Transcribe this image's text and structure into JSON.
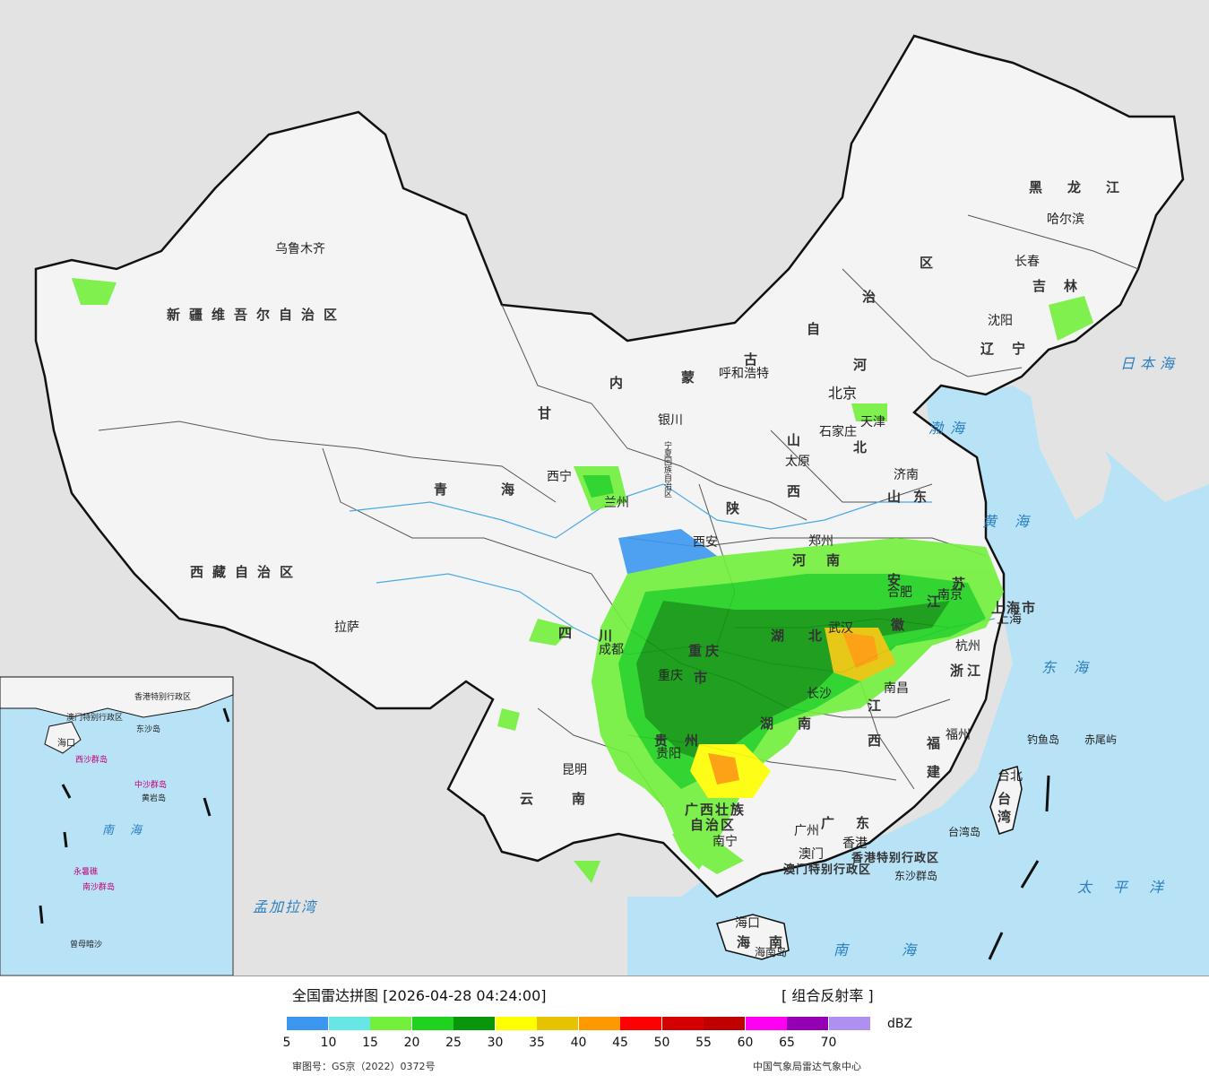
{
  "title": "全国雷达拼图",
  "timestamp": "[2026-04-28 04:24:00]",
  "product": "[ 组合反射率 ]",
  "unit": "dBZ",
  "approval_no": "审图号：GS京（2022）0372号",
  "agency": "中国气象局雷达气象中心",
  "colors": {
    "sea": "#b8e3f7",
    "land_china": "#f4f4f4",
    "land_other": "#e3e3e3",
    "border": "#111111"
  },
  "legend": [
    {
      "value": "5",
      "color": "#3d97f1"
    },
    {
      "value": "10",
      "color": "#67e6e6"
    },
    {
      "value": "15",
      "color": "#72f03c"
    },
    {
      "value": "20",
      "color": "#1fd21f"
    },
    {
      "value": "25",
      "color": "#0a960a"
    },
    {
      "value": "30",
      "color": "#ffff00"
    },
    {
      "value": "35",
      "color": "#e6c300"
    },
    {
      "value": "40",
      "color": "#ff9900"
    },
    {
      "value": "45",
      "color": "#ff0000"
    },
    {
      "value": "50",
      "color": "#d50000"
    },
    {
      "value": "55",
      "color": "#c00000"
    },
    {
      "value": "60",
      "color": "#ff00f0"
    },
    {
      "value": "65",
      "color": "#9600b4"
    },
    {
      "value": "70",
      "color": "#ad90f0"
    }
  ],
  "provinces": [
    "新疆维吾尔自治区",
    "西藏自治区",
    "青海",
    "甘",
    "内",
    "蒙",
    "古",
    "自",
    "治",
    "区",
    "黑龙江",
    "吉林",
    "辽宁",
    "河",
    "北",
    "山",
    "西",
    "陕",
    "山东",
    "河",
    "南",
    "四",
    "川",
    "重庆",
    "市",
    "湖",
    "北",
    "安",
    "徽",
    "江",
    "苏",
    "浙江",
    "湖",
    "南",
    "江",
    "西",
    "福",
    "建",
    "贵",
    "州",
    "云",
    "南",
    "广西壮族",
    "自治区",
    "广",
    "东",
    "海",
    "南",
    "台",
    "湾",
    "宁夏回族自治区",
    "上海市",
    "香港特别行政区",
    "澳门特别行政区"
  ],
  "cities": [
    "乌鲁木齐",
    "呼和浩特",
    "哈尔滨",
    "长春",
    "沈阳",
    "北京",
    "天津",
    "石家庄",
    "太原",
    "济南",
    "银川",
    "西宁",
    "兰州",
    "西安",
    "郑州",
    "合肥",
    "南京",
    "杭州",
    "上海",
    "武汉",
    "南昌",
    "长沙",
    "福州",
    "台北",
    "重庆",
    "成都",
    "贵阳",
    "昆明",
    "南宁",
    "广州",
    "香港",
    "澳门",
    "海口",
    "拉萨"
  ],
  "seas": [
    "日本海",
    "渤海",
    "黄海",
    "东海",
    "太平洋",
    "南海",
    "孟加拉湾"
  ],
  "islands": [
    "钓鱼岛",
    "赤尾屿",
    "台湾岛",
    "东沙群岛",
    "海南岛"
  ],
  "inset": [
    "海口",
    "西沙群岛",
    "中沙群岛",
    "黄岩岛",
    "南海",
    "永暑礁",
    "南沙群岛",
    "曾母暗沙",
    "香港特别行政区",
    "澳门特别行政区",
    "东沙岛"
  ]
}
